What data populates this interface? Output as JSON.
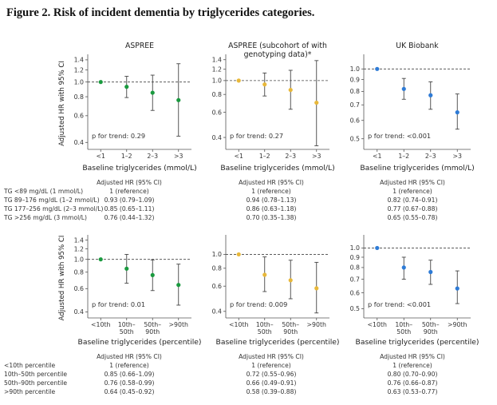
{
  "figure_title": "Figure 2.  Risk of incident dementia by triglycerides categories.",
  "colors": {
    "aspree": "#1a9a3f",
    "aspree_sub": "#e8b83a",
    "ukb": "#2e7bd6",
    "ci_line": "#444444",
    "ref_line": "#444444",
    "text": "#333333"
  },
  "chart_data": [
    {
      "type": "scatter",
      "panel": "top-left",
      "title": "ASPREE",
      "xlabel": "Baseline triglycerides (mmol/L)",
      "ylabel": "Adjusted HR with 95% CI",
      "categories": [
        "<1",
        "1–2",
        "2–3",
        ">3"
      ],
      "yscale": "log",
      "ylim": [
        0.36,
        1.45
      ],
      "yticks": [
        "1.4",
        "1.2",
        "1.0",
        "0.8",
        "0.6",
        "0.4"
      ],
      "reference_line": 1.0,
      "series": [
        {
          "color": "aspree",
          "values": [
            1.0,
            0.93,
            0.85,
            0.76
          ],
          "lower": [
            1.0,
            0.79,
            0.65,
            0.44
          ],
          "upper": [
            1.0,
            1.09,
            1.11,
            1.32
          ]
        }
      ],
      "annotation": "p for trend: 0.29"
    },
    {
      "type": "scatter",
      "panel": "top-middle",
      "title": "ASPREE (subcohort of with genotyping data)*",
      "xlabel": "Baseline triglycerides (mmol/L)",
      "ylabel": "",
      "categories": [
        "<1",
        "1–2",
        "2–3",
        ">3"
      ],
      "yscale": "log",
      "ylim": [
        0.33,
        1.45
      ],
      "yticks": [
        "1.4",
        "1.2",
        "1.0",
        "0.8",
        "0.6",
        "0.4"
      ],
      "reference_line": 1.0,
      "series": [
        {
          "color": "aspree_sub",
          "values": [
            1.0,
            0.94,
            0.86,
            0.7
          ],
          "lower": [
            1.0,
            0.78,
            0.63,
            0.35
          ],
          "upper": [
            1.0,
            1.13,
            1.18,
            1.38
          ]
        }
      ],
      "annotation": "p for trend: 0.27"
    },
    {
      "type": "scatter",
      "panel": "top-right",
      "title": "UK Biobank",
      "xlabel": "Baseline triglycerides (mmol/L)",
      "ylabel": "",
      "categories": [
        "<1",
        "1–2",
        "2–3",
        ">3"
      ],
      "yscale": "log",
      "ylim": [
        0.45,
        1.12
      ],
      "yticks": [
        "1.0",
        "0.9",
        "0.8",
        "0.7",
        "0.6",
        "0.5"
      ],
      "reference_line": 1.0,
      "series": [
        {
          "color": "ukb",
          "values": [
            1.0,
            0.82,
            0.77,
            0.65
          ],
          "lower": [
            1.0,
            0.74,
            0.67,
            0.55
          ],
          "upper": [
            1.0,
            0.91,
            0.88,
            0.78
          ]
        }
      ],
      "annotation": "p for trend: <0.001"
    },
    {
      "type": "scatter",
      "panel": "bottom-left",
      "title": "",
      "xlabel": "Baseline triglycerides (percentile)",
      "ylabel": "Adjusted HR with 95% CI",
      "categories": [
        "<10th",
        "10th–50th",
        "50th–90th",
        ">90th"
      ],
      "yscale": "log",
      "ylim": [
        0.36,
        1.45
      ],
      "yticks": [
        "1.4",
        "1.2",
        "1.0",
        "0.8",
        "0.6",
        "0.4"
      ],
      "reference_line": 1.0,
      "series": [
        {
          "color": "aspree",
          "values": [
            1.0,
            0.85,
            0.76,
            0.64
          ],
          "lower": [
            1.0,
            0.66,
            0.58,
            0.45
          ],
          "upper": [
            1.0,
            1.09,
            0.99,
            0.92
          ]
        }
      ],
      "annotation": "p for trend: 0.01"
    },
    {
      "type": "scatter",
      "panel": "bottom-middle",
      "title": "",
      "xlabel": "Baseline triglycerides (percentile)",
      "ylabel": "",
      "categories": [
        "<10th",
        "10th–50th",
        "50th–90th",
        ">90th"
      ],
      "yscale": "log",
      "ylim": [
        0.36,
        1.3
      ],
      "yticks": [
        "1.0",
        "0.8",
        "0.6",
        "0.4"
      ],
      "reference_line": 1.0,
      "series": [
        {
          "color": "aspree_sub",
          "values": [
            1.0,
            0.72,
            0.66,
            0.58
          ],
          "lower": [
            1.0,
            0.55,
            0.49,
            0.39
          ],
          "upper": [
            1.0,
            0.96,
            0.91,
            0.88
          ]
        }
      ],
      "annotation": "p for trend: 0.009"
    },
    {
      "type": "scatter",
      "panel": "bottom-right",
      "title": "",
      "xlabel": "Baseline triglycerides (percentile)",
      "ylabel": "",
      "categories": [
        "<10th",
        "10th–50th",
        "50th–90th",
        ">90th"
      ],
      "yscale": "log",
      "ylim": [
        0.45,
        1.12
      ],
      "yticks": [
        "1.0",
        "0.9",
        "0.8",
        "0.7",
        "0.6",
        "0.5"
      ],
      "reference_line": 1.0,
      "series": [
        {
          "color": "ukb",
          "values": [
            1.0,
            0.8,
            0.76,
            0.63
          ],
          "lower": [
            1.0,
            0.7,
            0.66,
            0.53
          ],
          "upper": [
            1.0,
            0.9,
            0.87,
            0.77
          ]
        }
      ],
      "annotation": "p for trend: <0.001"
    }
  ],
  "tables": [
    {
      "header": "Adjusted HR (95% CI)",
      "row_labels": [
        "TG <89 mg/dL (1 mmol/L)",
        "TG 89–176 mg/dL (1–2 mmol/L)",
        "TG 177–256 mg/dL (2–3 mmol/L)",
        "TG >256 mg/dL (3 mmol/L)"
      ],
      "columns": [
        [
          "1 (reference)",
          "0.93 (0.79–1.09)",
          "0.85 (0.65–1.11)",
          "0.76 (0.44–1.32)"
        ],
        [
          "1 (reference)",
          "0.94 (0.78–1.13)",
          "0.86 (0.63–1.18)",
          "0.70 (0.35–1.38)"
        ],
        [
          "1 (reference)",
          "0.82 (0.74–0.91)",
          "0.77 (0.67–0.88)",
          "0.65 (0.55–0.78)"
        ]
      ]
    },
    {
      "header": "Adjusted HR (95% CI)",
      "row_labels": [
        "<10th percentile",
        "10th–50th percentile",
        "50th–90th percentile",
        ">90th percentile"
      ],
      "columns": [
        [
          "1 (reference)",
          "0.85 (0.66–1.09)",
          "0.76 (0.58–0.99)",
          "0.64 (0.45–0.92)"
        ],
        [
          "1 (reference)",
          "0.72 (0.55–0.96)",
          "0.66 (0.49–0.91)",
          "0.58 (0.39–0.88)"
        ],
        [
          "1 (reference)",
          "0.80 (0.70–0.90)",
          "0.76 (0.66–0.87)",
          "0.63 (0.53–0.77)"
        ]
      ]
    }
  ]
}
